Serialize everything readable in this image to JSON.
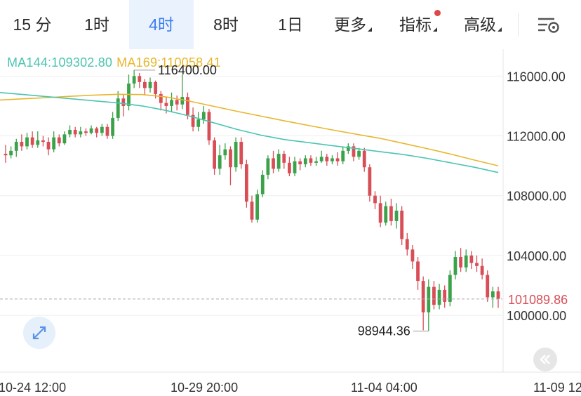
{
  "tabs": [
    {
      "label": "15 分"
    },
    {
      "label": "1时"
    },
    {
      "label": "4时",
      "active": true
    },
    {
      "label": "8时"
    },
    {
      "label": "1日"
    },
    {
      "label": "更多"
    },
    {
      "label": "指标"
    },
    {
      "label": "高级"
    }
  ],
  "icons": {
    "settings": "settings-sliders-icon",
    "expand": "expand-arrows-icon",
    "back": "double-chevron-left-icon"
  },
  "colors": {
    "up": "#3ba24a",
    "down": "#d84e57",
    "ma144": "#4bc4b1",
    "ma169": "#e8b62d",
    "accent": "#3b7ff0",
    "price_line": "#d84e57"
  },
  "ma_legend": {
    "ma144": "MA144:109302.80",
    "ma169": "MA169:110058.41"
  },
  "chart_data": {
    "type": "candlestick",
    "timeframe": "4时",
    "y_axis": {
      "ticks": [
        "116000.00",
        "112000.00",
        "108000.00",
        "104000.00",
        "100000.00"
      ],
      "tick_values": [
        116000,
        112000,
        108000,
        104000,
        100000
      ],
      "range": [
        96200,
        117800
      ]
    },
    "x_axis": {
      "tick_labels": [
        "10-24 12:00",
        "10-29 20:00",
        "11-04 04:00",
        "11-09 12"
      ]
    },
    "annotations": {
      "high": {
        "label": "116400.00",
        "value": 116400
      },
      "low": {
        "label": "98944.36",
        "value": 98944.36
      },
      "current": {
        "label": "101089.86",
        "value": 101089.86
      }
    },
    "candles": [
      [
        110800,
        110700,
        110200,
        111400
      ],
      [
        110700,
        111000,
        110500,
        111300
      ],
      [
        111000,
        111600,
        110600,
        111800
      ],
      [
        111600,
        111300,
        111000,
        112100
      ],
      [
        111300,
        111900,
        111100,
        112200
      ],
      [
        111900,
        111400,
        111200,
        112300
      ],
      [
        111400,
        111700,
        111200,
        112300
      ],
      [
        111700,
        111600,
        111300,
        112000
      ],
      [
        111600,
        111100,
        110700,
        111900
      ],
      [
        111100,
        111900,
        110900,
        112300
      ],
      [
        111900,
        111500,
        111300,
        112100
      ],
      [
        111500,
        112100,
        111400,
        112300
      ],
      [
        112100,
        112400,
        111900,
        112700
      ],
      [
        112400,
        112100,
        111900,
        112600
      ],
      [
        112100,
        112300,
        111900,
        112600
      ],
      [
        112300,
        112200,
        112000,
        112500
      ],
      [
        112200,
        112500,
        112100,
        112700
      ],
      [
        112500,
        112200,
        111900,
        112600
      ],
      [
        112200,
        112600,
        112000,
        112800
      ],
      [
        112600,
        112000,
        111800,
        112800
      ],
      [
        112000,
        113200,
        111800,
        113600
      ],
      [
        113200,
        114500,
        113000,
        115000
      ],
      [
        114500,
        114000,
        113300,
        114800
      ],
      [
        114000,
        115500,
        113700,
        116100
      ],
      [
        115500,
        116000,
        115200,
        116400
      ],
      [
        116000,
        115600,
        115200,
        116200
      ],
      [
        115600,
        115200,
        114700,
        115800
      ],
      [
        115200,
        115600,
        114900,
        115900
      ],
      [
        115600,
        114800,
        114500,
        115700
      ],
      [
        114800,
        114200,
        113700,
        115000
      ],
      [
        114200,
        114000,
        113500,
        114600
      ],
      [
        114000,
        114400,
        113600,
        114900
      ],
      [
        114400,
        114100,
        113700,
        114700
      ],
      [
        114100,
        114600,
        113800,
        116100
      ],
      [
        114600,
        113400,
        113100,
        114900
      ],
      [
        113400,
        112600,
        112300,
        113900
      ],
      [
        112600,
        113100,
        112300,
        113600
      ],
      [
        113100,
        113600,
        112800,
        114000
      ],
      [
        113600,
        111700,
        111400,
        113800
      ],
      [
        111700,
        109800,
        109400,
        111900
      ],
      [
        109800,
        110700,
        109400,
        111400
      ],
      [
        110700,
        111100,
        110400,
        111500
      ],
      [
        111100,
        109900,
        108700,
        111300
      ],
      [
        109900,
        111600,
        109600,
        111900
      ],
      [
        111600,
        110100,
        109800,
        111900
      ],
      [
        110100,
        107600,
        107200,
        110400
      ],
      [
        107600,
        106400,
        106200,
        108000
      ],
      [
        106400,
        108100,
        106200,
        108400
      ],
      [
        108100,
        109400,
        107900,
        109700
      ],
      [
        109400,
        110500,
        109100,
        110700
      ],
      [
        110500,
        109800,
        109500,
        111000
      ],
      [
        109800,
        110800,
        109600,
        111100
      ],
      [
        110800,
        110200,
        109800,
        111000
      ],
      [
        110200,
        109500,
        109300,
        110600
      ],
      [
        109500,
        110300,
        109300,
        110600
      ],
      [
        110300,
        110100,
        109700,
        110500
      ],
      [
        110100,
        110500,
        109900,
        110700
      ],
      [
        110500,
        110200,
        110000,
        110700
      ],
      [
        110200,
        110300,
        110000,
        110600
      ],
      [
        110300,
        110600,
        110200,
        111000
      ],
      [
        110600,
        110300,
        110000,
        110800
      ],
      [
        110300,
        110500,
        110100,
        110700
      ],
      [
        110500,
        110300,
        110000,
        110900
      ],
      [
        110300,
        111000,
        110100,
        111300
      ],
      [
        111000,
        111300,
        110800,
        111500
      ],
      [
        111300,
        110600,
        110300,
        111500
      ],
      [
        110600,
        111000,
        110400,
        111200
      ],
      [
        111000,
        109900,
        109600,
        111200
      ],
      [
        109900,
        108000,
        107600,
        110100
      ],
      [
        108000,
        107500,
        107100,
        108300
      ],
      [
        107500,
        106200,
        105900,
        108000
      ],
      [
        106200,
        107300,
        106000,
        107600
      ],
      [
        107300,
        106300,
        106000,
        107800
      ],
      [
        106300,
        107000,
        105800,
        107500
      ],
      [
        107000,
        105100,
        104700,
        107300
      ],
      [
        105100,
        104400,
        104000,
        105500
      ],
      [
        104400,
        103600,
        103100,
        104700
      ],
      [
        103600,
        102300,
        101700,
        103900
      ],
      [
        102300,
        100200,
        99000,
        102600
      ],
      [
        100200,
        101900,
        98944.36,
        102400
      ],
      [
        101900,
        100700,
        100400,
        102300
      ],
      [
        100700,
        101700,
        100400,
        102100
      ],
      [
        101700,
        100900,
        100500,
        102000
      ],
      [
        100900,
        102700,
        100600,
        103000
      ],
      [
        102700,
        103900,
        102400,
        104300
      ],
      [
        103900,
        103200,
        102900,
        104500
      ],
      [
        103200,
        104000,
        102900,
        104400
      ],
      [
        104000,
        103500,
        103100,
        104300
      ],
      [
        103500,
        103300,
        102900,
        104000
      ],
      [
        103300,
        102700,
        102400,
        103800
      ],
      [
        102700,
        101200,
        100900,
        103000
      ],
      [
        101200,
        101600,
        100500,
        101900
      ],
      [
        101600,
        101100,
        100500,
        101900
      ]
    ],
    "ma144": [
      114900,
      114760,
      114620,
      114480,
      114340,
      114200,
      114000,
      113700,
      113320,
      112880,
      112430,
      112050,
      111750,
      111550,
      111350,
      111150,
      110950,
      110750,
      110500,
      110200,
      109900,
      109550
    ],
    "ma169": [
      114400,
      114480,
      114560,
      114650,
      114730,
      114780,
      114760,
      114600,
      114320,
      113980,
      113640,
      113320,
      113000,
      112700,
      112400,
      112120,
      111840,
      111500,
      111150,
      110780,
      110380,
      110000
    ]
  }
}
